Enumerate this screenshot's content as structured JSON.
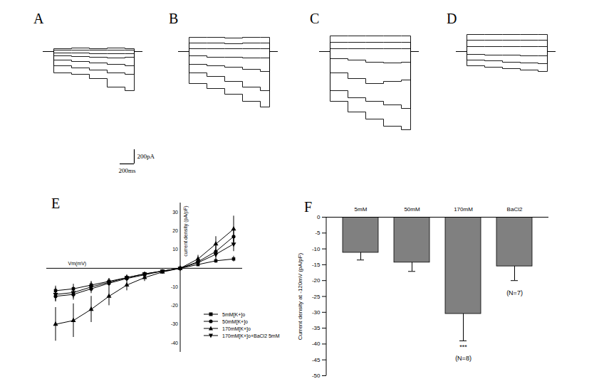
{
  "chart_data": [
    {
      "type": "line",
      "title": "A",
      "tick_labels": false,
      "x": [
        -150,
        0,
        250,
        500,
        750,
        1000,
        1130,
        1250
      ],
      "xlim": [
        -150,
        1250
      ],
      "ylim": [
        -1780,
        420
      ],
      "series": [
        {
          "color": "#000000",
          "values": [
            0,
            40,
            50,
            40,
            50,
            40,
            0,
            0
          ]
        },
        {
          "color": "#000000",
          "values": [
            0,
            20,
            20,
            20,
            20,
            20,
            0,
            0
          ]
        },
        {
          "color": "#000000",
          "values": [
            0,
            -20,
            -20,
            -30,
            -30,
            -30,
            0,
            0
          ]
        },
        {
          "color": "#000000",
          "values": [
            0,
            -60,
            -70,
            -80,
            -90,
            -80,
            0,
            0
          ]
        },
        {
          "color": "#000000",
          "values": [
            0,
            -120,
            -140,
            -160,
            -180,
            -200,
            0,
            0
          ]
        },
        {
          "color": "#000000",
          "values": [
            0,
            -200,
            -230,
            -260,
            -300,
            -320,
            0,
            0
          ]
        },
        {
          "color": "#000000",
          "values": [
            0,
            -300,
            -320,
            -380,
            -500,
            -550,
            0,
            0
          ]
        }
      ],
      "scale_bar": {
        "time": 200,
        "current": 200,
        "time_label": "200ms",
        "current_label": "200pA"
      }
    },
    {
      "type": "line",
      "title": "B",
      "tick_labels": false,
      "x": [
        -150,
        0,
        250,
        500,
        750,
        1000,
        1130,
        1250
      ],
      "xlim": [
        -150,
        1250
      ],
      "ylim": [
        -1780,
        420
      ],
      "series": [
        {
          "color": "#000000",
          "values": [
            0,
            200,
            200,
            190,
            200,
            200,
            0,
            0
          ]
        },
        {
          "color": "#000000",
          "values": [
            0,
            120,
            120,
            110,
            120,
            120,
            0,
            0
          ]
        },
        {
          "color": "#000000",
          "values": [
            0,
            40,
            40,
            40,
            40,
            40,
            0,
            0
          ]
        },
        {
          "color": "#000000",
          "values": [
            0,
            -60,
            -80,
            -80,
            -90,
            -90,
            0,
            0
          ]
        },
        {
          "color": "#000000",
          "values": [
            0,
            -180,
            -200,
            -220,
            -250,
            -280,
            0,
            0
          ]
        },
        {
          "color": "#000000",
          "values": [
            0,
            -300,
            -350,
            -420,
            -500,
            -550,
            0,
            0
          ]
        },
        {
          "color": "#000000",
          "values": [
            0,
            -450,
            -520,
            -600,
            -700,
            -780,
            0,
            0
          ]
        }
      ]
    },
    {
      "type": "line",
      "title": "C",
      "tick_labels": false,
      "x": [
        -150,
        0,
        250,
        500,
        750,
        1000,
        1130,
        1250
      ],
      "xlim": [
        -150,
        1250
      ],
      "ylim": [
        -1780,
        420
      ],
      "series": [
        {
          "color": "#000000",
          "values": [
            0,
            220,
            220,
            220,
            220,
            220,
            0,
            0
          ]
        },
        {
          "color": "#000000",
          "values": [
            0,
            130,
            130,
            130,
            130,
            130,
            0,
            0
          ]
        },
        {
          "color": "#000000",
          "values": [
            0,
            40,
            40,
            40,
            40,
            40,
            0,
            0
          ]
        },
        {
          "color": "#000000",
          "values": [
            0,
            -100,
            -120,
            -150,
            -160,
            -150,
            0,
            0
          ]
        },
        {
          "color": "#000000",
          "values": [
            0,
            -300,
            -380,
            -450,
            -420,
            -400,
            0,
            0
          ]
        },
        {
          "color": "#000000",
          "values": [
            0,
            -550,
            -650,
            -700,
            -750,
            -800,
            0,
            0
          ]
        },
        {
          "color": "#000000",
          "values": [
            0,
            -700,
            -850,
            -950,
            -1050,
            -1100,
            0,
            0
          ]
        }
      ]
    },
    {
      "type": "line",
      "title": "D",
      "tick_labels": false,
      "x": [
        -150,
        0,
        250,
        500,
        750,
        1000,
        1130,
        1250
      ],
      "xlim": [
        -150,
        1250
      ],
      "ylim": [
        -1780,
        420
      ],
      "series": [
        {
          "color": "#000000",
          "values": [
            0,
            240,
            240,
            240,
            240,
            240,
            0,
            0
          ]
        },
        {
          "color": "#000000",
          "values": [
            0,
            160,
            160,
            160,
            160,
            160,
            0,
            0
          ]
        },
        {
          "color": "#000000",
          "values": [
            0,
            70,
            70,
            70,
            70,
            70,
            0,
            0
          ]
        },
        {
          "color": "#000000",
          "values": [
            0,
            -40,
            -50,
            -50,
            -60,
            -60,
            0,
            0
          ]
        },
        {
          "color": "#000000",
          "values": [
            0,
            -120,
            -130,
            -150,
            -160,
            -170,
            0,
            0
          ]
        },
        {
          "color": "#000000",
          "values": [
            0,
            -200,
            -220,
            -240,
            -260,
            -280,
            0,
            0
          ]
        }
      ]
    },
    {
      "type": "line",
      "title": "E",
      "x_label": "Vm(mV)",
      "y_label": "current density (pA/pF)",
      "tick_labels": "y",
      "legend": "lower right",
      "x": [
        -140,
        -120,
        -100,
        -80,
        -60,
        -40,
        -20,
        0,
        20,
        40,
        60
      ],
      "xlim": [
        -150,
        70
      ],
      "ylim": [
        -45,
        35
      ],
      "yticks": [
        -40,
        -30,
        -20,
        -10,
        10,
        20,
        30
      ],
      "series": [
        {
          "name": "5mM[K+]o",
          "color": "#000000",
          "marker": "square",
          "values": [
            -12,
            -11,
            -9,
            -7,
            -5,
            -3,
            -1.5,
            0,
            2,
            4,
            5
          ],
          "errors": [
            2.5,
            2.5,
            2,
            1.5,
            1.2,
            1,
            0.5,
            0,
            0.8,
            1.2,
            1.5
          ]
        },
        {
          "name": "50mM[K+]o",
          "color": "#000000",
          "marker": "circle",
          "values": [
            -15,
            -14,
            -11,
            -8,
            -5.5,
            -3.5,
            -1.5,
            0,
            3.5,
            9,
            17
          ],
          "errors": [
            3,
            3,
            2.5,
            2,
            1.5,
            1,
            0.5,
            0,
            1.5,
            3,
            5
          ]
        },
        {
          "name": "170mM[K+]o",
          "color": "#000000",
          "marker": "triangle",
          "values": [
            -30,
            -28,
            -22,
            -15,
            -9,
            -5,
            -2,
            0,
            5,
            13,
            21
          ],
          "errors": [
            9,
            9,
            7,
            5,
            3,
            2,
            1,
            0,
            2,
            4,
            7
          ]
        },
        {
          "name": "170mM[K+]o+BaCl2 5mM",
          "color": "#000000",
          "marker": "triangle-down",
          "values": [
            -14,
            -13,
            -10,
            -7.5,
            -5,
            -3,
            -1.5,
            0,
            3,
            7.5,
            13
          ],
          "errors": [
            3.5,
            3,
            2.5,
            2,
            1.5,
            1,
            0.5,
            0,
            1.2,
            2.5,
            4
          ]
        }
      ]
    },
    {
      "type": "bar",
      "title": "F",
      "y_label": "Current density at -120mV (pA/pF)",
      "categories": [
        "5mM",
        "50mM",
        "170mM",
        "BaCl2"
      ],
      "values": [
        -11.2,
        -14.3,
        -30.5,
        -15.5
      ],
      "errors": [
        2.3,
        2.8,
        8.5,
        4.5
      ],
      "color": "#808080",
      "ylim": [
        -50,
        0
      ],
      "yticks": [
        0,
        -5,
        -10,
        -15,
        -20,
        -25,
        -30,
        -35,
        -40,
        -45,
        -50
      ],
      "annotations": [
        {
          "text": "***",
          "x": "170mM",
          "y": -41
        },
        {
          "text": "(N=8)",
          "x": "170mM",
          "y": -44.5
        },
        {
          "text": "(N=7)",
          "x": "BaCl2",
          "y": -24
        }
      ]
    }
  ]
}
